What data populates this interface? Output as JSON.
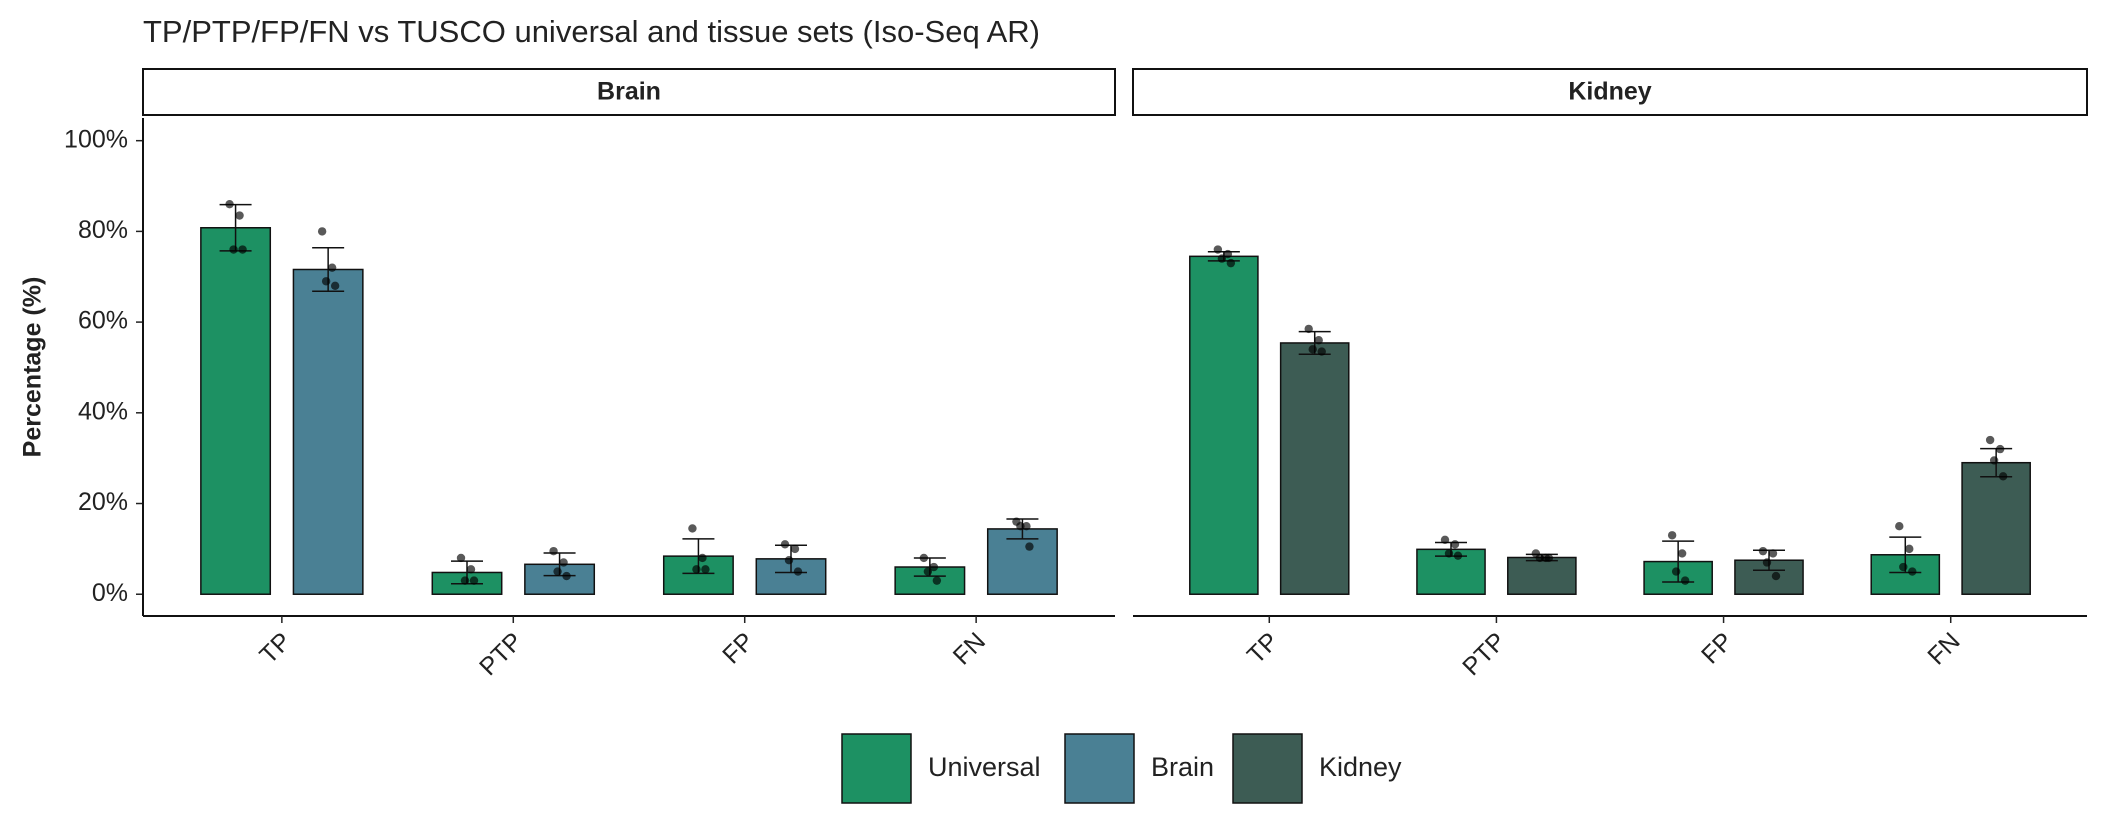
{
  "title": "TP/PTP/FP/FN vs TUSCO universal and tissue sets (Iso-Seq AR)",
  "chart_data": [
    {
      "type": "bar",
      "facet": "Brain",
      "y_label": "Percentage (%)",
      "categories": [
        "TP",
        "PTP",
        "FP",
        "FN"
      ],
      "ylim": [
        -4.8,
        105
      ],
      "yticks": [
        {
          "value": 0,
          "label": "0%"
        },
        {
          "value": 20,
          "label": "20%"
        },
        {
          "value": 40,
          "label": "40%"
        },
        {
          "value": 60,
          "label": "60%"
        },
        {
          "value": 80,
          "label": "80%"
        },
        {
          "value": 100,
          "label": "100%"
        }
      ],
      "series": [
        {
          "name": "Universal",
          "color": "#1d9163",
          "values": [
            80.8,
            4.8,
            8.4,
            6
          ],
          "errors": [
            5.1,
            2.5,
            3.8,
            2
          ],
          "points": [
            [
              86,
              83.5,
              76,
              76
            ],
            [
              8,
              5.5,
              3,
              3
            ],
            [
              14.5,
              8,
              5.5,
              5.5
            ],
            [
              8,
              6,
              5,
              3
            ]
          ]
        },
        {
          "name": "Brain",
          "color": "#4a8094",
          "values": [
            71.6,
            6.6,
            7.8,
            14.4
          ],
          "errors": [
            4.8,
            2.5,
            3,
            2.2
          ],
          "points": [
            [
              80,
              72,
              69,
              68
            ],
            [
              9.5,
              7,
              5,
              4
            ],
            [
              11,
              10,
              7.5,
              5
            ],
            [
              16,
              15,
              15,
              10.5
            ]
          ]
        }
      ]
    },
    {
      "type": "bar",
      "facet": "Kidney",
      "categories": [
        "TP",
        "PTP",
        "FP",
        "FN"
      ],
      "series": [
        {
          "name": "Universal",
          "color": "#1d9163",
          "values": [
            74.5,
            9.9,
            7.2,
            8.7
          ],
          "errors": [
            1,
            1.5,
            4.5,
            3.9
          ],
          "points": [
            [
              76,
              75,
              74,
              73
            ],
            [
              12,
              11,
              9,
              8.5
            ],
            [
              13,
              9,
              5,
              3
            ],
            [
              15,
              10,
              6,
              5
            ]
          ]
        },
        {
          "name": "Kidney",
          "color": "#3d5c54",
          "values": [
            55.4,
            8.1,
            7.5,
            29
          ],
          "errors": [
            2.5,
            0.7,
            2.2,
            3.1
          ],
          "points": [
            [
              58.5,
              56,
              54,
              53.5
            ],
            [
              9,
              8,
              8,
              8
            ],
            [
              9.5,
              9,
              7,
              4
            ],
            [
              34,
              32,
              29.5,
              26
            ]
          ]
        }
      ]
    }
  ]
}
